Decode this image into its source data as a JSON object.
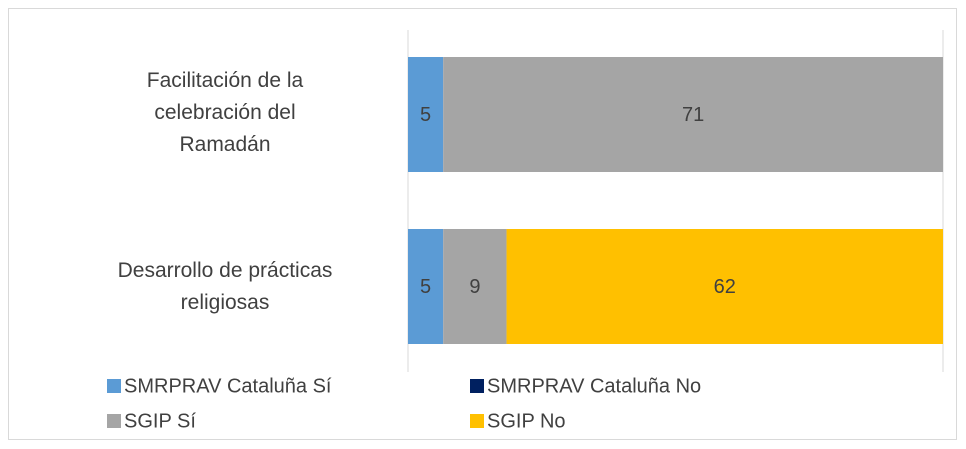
{
  "chart_data": {
    "type": "bar",
    "orientation": "horizontal",
    "stacked": true,
    "categories": [
      "Facilitación de la celebración del Ramadán",
      "Desarrollo de prácticas religiosas"
    ],
    "series": [
      {
        "name": "SMRPRAV Cataluña Sí",
        "color": "#5b9bd5",
        "values": [
          5,
          5
        ]
      },
      {
        "name": "SMRPRAV Cataluña No",
        "color": "#002060",
        "values": [
          0,
          0
        ]
      },
      {
        "name": "SGIP Sí",
        "color": "#a5a5a5",
        "values": [
          71,
          9
        ]
      },
      {
        "name": "SGIP No",
        "color": "#ffc000",
        "values": [
          0,
          62
        ]
      }
    ],
    "xlim": [
      0,
      76
    ],
    "grid": true,
    "legend": "bottom"
  }
}
